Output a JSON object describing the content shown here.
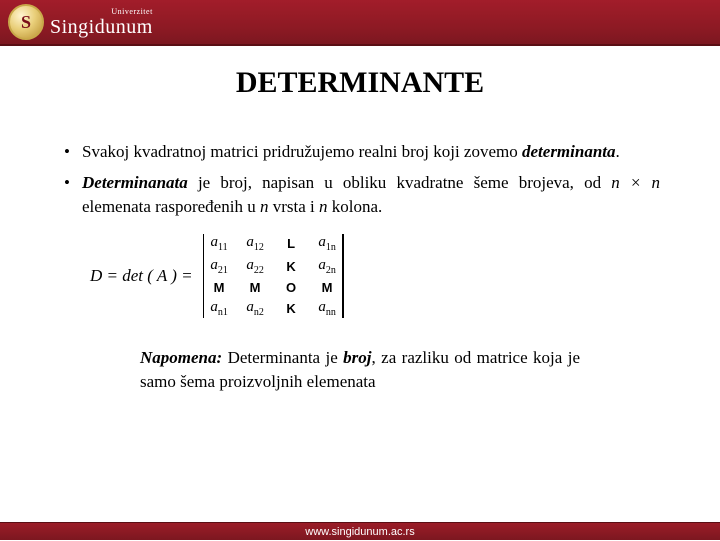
{
  "header": {
    "badge_glyph": "S",
    "uni_small": "Univerzitet",
    "uni_name": "Singidunum"
  },
  "title": "DETERMINANTE",
  "bullets": {
    "b1_part1": "Svakoj kvadratnoj matrici pridružujemo realni broj koji zovemo ",
    "b1_em": "determinanta",
    "b1_part2": ".",
    "b2_strong": "Determinanata",
    "b2_part1": " je broj, napisan u obliku  kvadratne šeme brojeva, od ",
    "b2_math": "n × n",
    "b2_part2": " elemenata raspoređenih u ",
    "b2_n1": "n",
    "b2_part3": " vrsta i ",
    "b2_n2": "n",
    "b2_part4": " kolona."
  },
  "formula": {
    "lhs": "D = det ( A ) =",
    "m": {
      "r1c1_a": "a",
      "r1c1_s": "11",
      "r1c2_a": "a",
      "r1c2_s": "12",
      "r1c3": "L",
      "r1c4_a": "a",
      "r1c4_s": "1n",
      "r2c1_a": "a",
      "r2c1_s": "21",
      "r2c2_a": "a",
      "r2c2_s": "22",
      "r2c3": "K",
      "r2c4_a": "a",
      "r2c4_s": "2n",
      "r3c1": "M",
      "r3c2": "M",
      "r3c3": "O",
      "r3c4": "M",
      "r4c1_a": "a",
      "r4c1_s": "n1",
      "r4c2_a": "a",
      "r4c2_s": "n2",
      "r4c3": "K",
      "r4c4_a": "a",
      "r4c4_s": "nn"
    }
  },
  "note": {
    "label": "Napomena:",
    "p1": "  Determinanta je ",
    "strong": "broj",
    "p2": ", za razliku od matrice koja je samo šema proizvoljnih elemenata"
  },
  "footer": {
    "url": "www.singidunum.ac.rs"
  },
  "colors": {
    "brand_red": "#8e1a24",
    "gold": "#c9a94a",
    "text": "#000000",
    "background": "#ffffff"
  }
}
